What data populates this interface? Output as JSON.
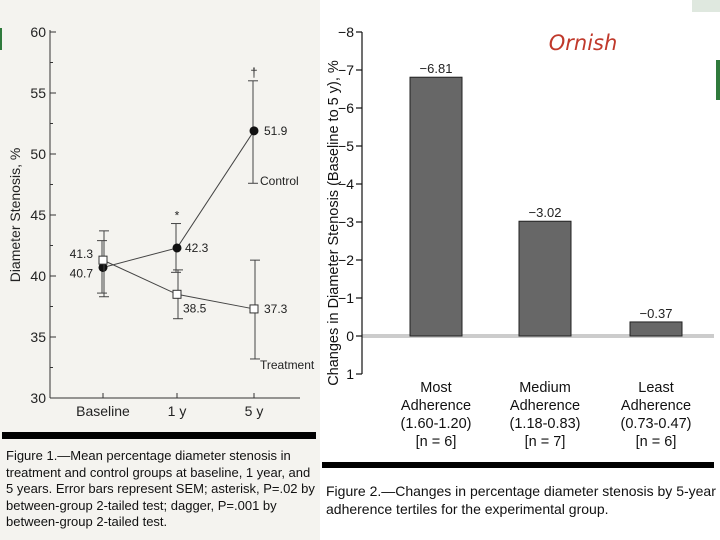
{
  "chart_data": [
    {
      "type": "line",
      "ylabel": "Diameter Stenosis, %",
      "xlabel": "",
      "categories": [
        "Baseline",
        "1 y",
        "5 y"
      ],
      "ylim": [
        30,
        60
      ],
      "yticks": [
        "30",
        "35",
        "40",
        "45",
        "50",
        "55",
        "60"
      ],
      "series": [
        {
          "name": "Control",
          "marker": "filled-circle",
          "values": [
            40.7,
            42.3,
            51.9
          ],
          "labels": [
            "40.7",
            "42.3",
            "51.9"
          ],
          "err_low": [
            38.6,
            40.3,
            47.6
          ],
          "err_high": [
            42.9,
            44.3,
            56.0
          ]
        },
        {
          "name": "Treatment",
          "marker": "open-square",
          "values": [
            41.3,
            38.5,
            37.3
          ],
          "labels": [
            "41.3",
            "38.5",
            "37.3"
          ],
          "err_low": [
            38.3,
            36.5,
            33.2
          ],
          "err_high": [
            43.7,
            40.5,
            41.3
          ]
        }
      ],
      "annotations": {
        "asterisk": "*",
        "dagger": "†"
      }
    },
    {
      "type": "bar",
      "ylabel": "Changes in Diameter Stenosis (Baseline to 5 y), %",
      "title": "Ornish",
      "ylim": [
        1,
        -8
      ],
      "yticks": [
        "1",
        "0",
        "−1",
        "−2",
        "−3",
        "−4",
        "−5",
        "−6",
        "−7",
        "−8"
      ],
      "values": [
        -6.81,
        -3.02,
        -0.37
      ],
      "value_labels": [
        "−6.81",
        "−3.02",
        "−0.37"
      ],
      "categories": [
        [
          "Most",
          "Adherence",
          "(1.60-1.20)",
          "[n = 6]"
        ],
        [
          "Medium",
          "Adherence",
          "(1.18-0.83)",
          "[n = 7]"
        ],
        [
          "Least",
          "Adherence",
          "(0.73-0.47)",
          "[n = 6]"
        ]
      ]
    }
  ],
  "captions": {
    "figure1": "Figure 1.—Mean percentage diameter stenosis in treatment and control groups at baseline, 1 year, and 5 years. Error bars represent SEM; asterisk, P=.02 by between-group 2-tailed test; dagger, P=.001 by between-group 2-tailed test.",
    "figure2": "Figure 2.—Changes in percentage diameter stenosis by 5-year adherence tertiles for the experimental group."
  },
  "colors": {
    "bar": "#676767",
    "zero_band": "#cccccc",
    "title": "#c0392b",
    "left_bg": "#f4f3ef"
  }
}
